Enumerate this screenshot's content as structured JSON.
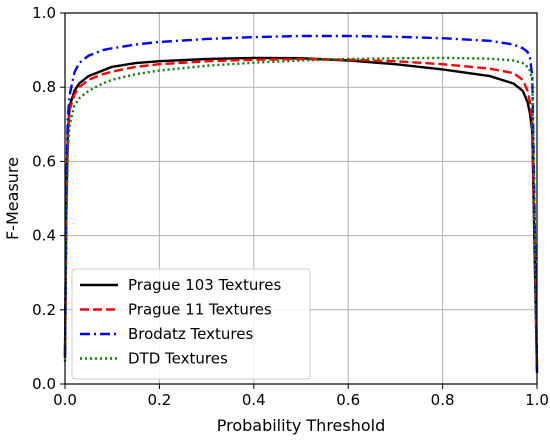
{
  "chart_data": {
    "type": "line",
    "title": "",
    "xlabel": "Probability Threshold",
    "ylabel": "F-Measure",
    "xlim": [
      0,
      1
    ],
    "ylim": [
      0,
      1
    ],
    "xticks": [
      "0.0",
      "0.2",
      "0.4",
      "0.6",
      "0.8",
      "1.0"
    ],
    "yticks": [
      "0.0",
      "0.2",
      "0.4",
      "0.6",
      "0.8",
      "1.0"
    ],
    "grid": true,
    "legend_position": "lower-left",
    "series": [
      {
        "name": "Prague 103 Textures",
        "color": "#000000",
        "style": "solid",
        "x": [
          0,
          0.003,
          0.006,
          0.01,
          0.02,
          0.03,
          0.05,
          0.08,
          0.1,
          0.15,
          0.2,
          0.3,
          0.4,
          0.5,
          0.6,
          0.7,
          0.8,
          0.9,
          0.95,
          0.97,
          0.98,
          0.985,
          0.99,
          0.995,
          1.0
        ],
        "y": [
          0.07,
          0.5,
          0.68,
          0.75,
          0.79,
          0.81,
          0.83,
          0.845,
          0.855,
          0.865,
          0.87,
          0.876,
          0.879,
          0.878,
          0.872,
          0.862,
          0.848,
          0.83,
          0.81,
          0.79,
          0.76,
          0.73,
          0.68,
          0.35,
          0.03
        ]
      },
      {
        "name": "Prague 11 Textures",
        "color": "#ff0000",
        "style": "dashed",
        "x": [
          0,
          0.003,
          0.006,
          0.01,
          0.02,
          0.03,
          0.05,
          0.08,
          0.1,
          0.15,
          0.2,
          0.3,
          0.4,
          0.5,
          0.6,
          0.7,
          0.8,
          0.9,
          0.95,
          0.97,
          0.98,
          0.985,
          0.99,
          0.995,
          1.0
        ],
        "y": [
          0.07,
          0.48,
          0.67,
          0.74,
          0.78,
          0.8,
          0.82,
          0.835,
          0.842,
          0.855,
          0.862,
          0.87,
          0.874,
          0.876,
          0.874,
          0.87,
          0.862,
          0.85,
          0.838,
          0.82,
          0.79,
          0.76,
          0.7,
          0.4,
          0.05
        ]
      },
      {
        "name": "Brodatz Textures",
        "color": "#0000ff",
        "style": "dashdot",
        "x": [
          0,
          0.003,
          0.006,
          0.01,
          0.02,
          0.03,
          0.05,
          0.08,
          0.1,
          0.15,
          0.2,
          0.3,
          0.4,
          0.5,
          0.6,
          0.7,
          0.8,
          0.9,
          0.95,
          0.97,
          0.98,
          0.985,
          0.99,
          0.995,
          1.0
        ],
        "y": [
          0.08,
          0.55,
          0.72,
          0.78,
          0.84,
          0.865,
          0.885,
          0.9,
          0.905,
          0.915,
          0.922,
          0.93,
          0.935,
          0.938,
          0.938,
          0.936,
          0.932,
          0.925,
          0.915,
          0.905,
          0.895,
          0.88,
          0.83,
          0.45,
          0.04
        ]
      },
      {
        "name": "DTD Textures",
        "color": "#008000",
        "style": "dotted",
        "x": [
          0,
          0.003,
          0.006,
          0.01,
          0.02,
          0.03,
          0.05,
          0.08,
          0.1,
          0.15,
          0.2,
          0.3,
          0.4,
          0.5,
          0.6,
          0.7,
          0.8,
          0.9,
          0.95,
          0.97,
          0.98,
          0.985,
          0.99,
          0.995,
          1.0
        ],
        "y": [
          0.06,
          0.45,
          0.63,
          0.7,
          0.75,
          0.77,
          0.79,
          0.81,
          0.82,
          0.835,
          0.845,
          0.858,
          0.866,
          0.872,
          0.876,
          0.878,
          0.879,
          0.877,
          0.872,
          0.865,
          0.855,
          0.845,
          0.82,
          0.45,
          0.05
        ]
      }
    ]
  }
}
